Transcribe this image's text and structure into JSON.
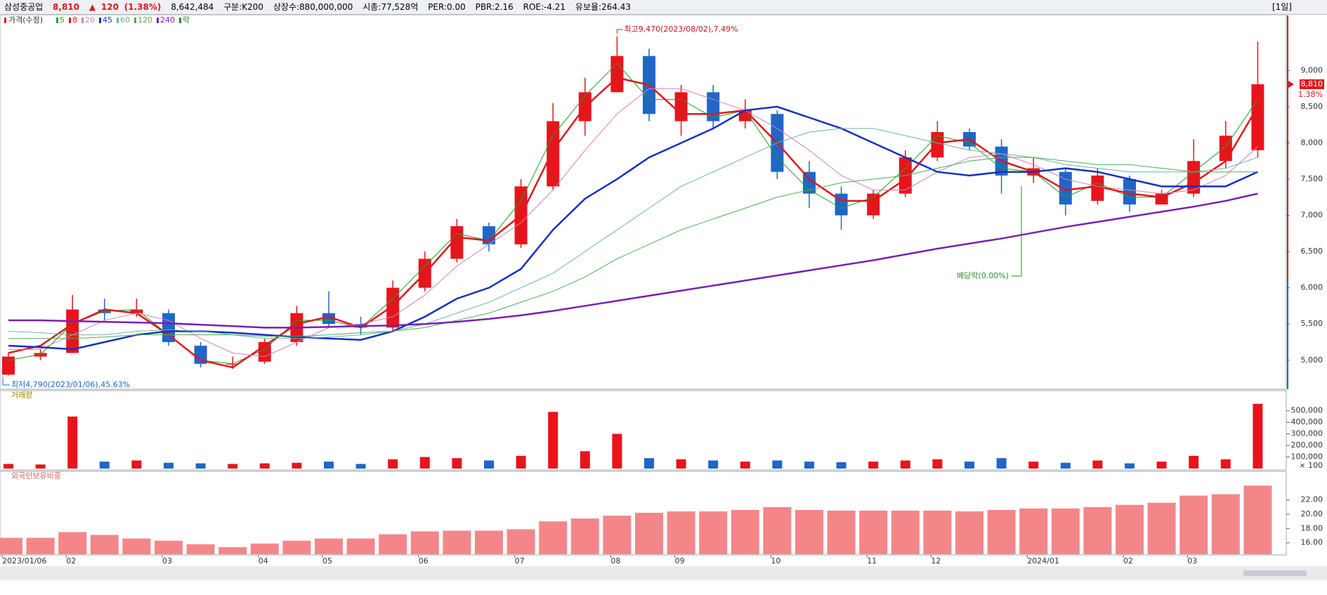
{
  "header": {
    "name": "삼성중공업",
    "price": "8,810",
    "arrow": "▲",
    "change": "120",
    "change_rate": "(1.38%)",
    "volume": "8,642,484",
    "group": "구분:K200",
    "shares": "상장수:880,000,000",
    "cap": "시총:77,528억",
    "per": "PER:0.00",
    "pbr": "PBR:2.16",
    "roe": "ROE:-4.21",
    "reserve": "유보율:264.43",
    "period": "[1일]"
  },
  "chart_data": [
    {
      "type": "candlestick",
      "price_label": "가격(수정)",
      "ex_div_label": "락",
      "categories": [
        "2023/01/06",
        null,
        "02",
        null,
        null,
        "03",
        null,
        null,
        "04",
        null,
        "05",
        null,
        null,
        "06",
        null,
        null,
        "07",
        null,
        null,
        "08",
        null,
        "09",
        null,
        null,
        "10",
        null,
        null,
        "11",
        null,
        "12",
        null,
        null,
        "2024/01",
        null,
        null,
        "02",
        null,
        "03",
        null,
        null
      ],
      "open": [
        4800,
        5050,
        5100,
        5700,
        5650,
        5650,
        5200,
        4950,
        4980,
        5250,
        5650,
        5500,
        5450,
        6000,
        6400,
        6850,
        6600,
        7400,
        8300,
        8700,
        9200,
        8300,
        8700,
        8300,
        8400,
        7600,
        7300,
        7000,
        7300,
        7800,
        8150,
        7950,
        7550,
        7600,
        7200,
        7500,
        7150,
        7300,
        7750,
        7900
      ],
      "high": [
        5100,
        5150,
        5900,
        5850,
        5850,
        5700,
        5250,
        5050,
        5300,
        5750,
        5950,
        5600,
        6100,
        6500,
        6950,
        6900,
        7500,
        8550,
        8900,
        9470,
        9300,
        8800,
        8800,
        8600,
        8450,
        7750,
        7400,
        7350,
        7900,
        8300,
        8200,
        8050,
        7800,
        7650,
        7650,
        7550,
        7350,
        8050,
        8300,
        9400
      ],
      "low": [
        4790,
        5000,
        5100,
        5550,
        5600,
        5200,
        4900,
        4880,
        4950,
        5200,
        5450,
        5350,
        5400,
        5950,
        6350,
        6500,
        6550,
        7350,
        8100,
        8700,
        8300,
        8100,
        8200,
        8200,
        7500,
        7100,
        6800,
        6950,
        7250,
        7750,
        7900,
        7300,
        7450,
        7000,
        7150,
        7050,
        7150,
        7250,
        7650,
        7800
      ],
      "close": [
        5050,
        5100,
        5700,
        5650,
        5700,
        5250,
        4950,
        4950,
        5250,
        5650,
        5500,
        5450,
        6000,
        6400,
        6850,
        6600,
        7400,
        8300,
        8700,
        9200,
        8400,
        8700,
        8300,
        8450,
        7600,
        7300,
        7000,
        7300,
        7800,
        8150,
        7950,
        7550,
        7650,
        7150,
        7550,
        7150,
        7300,
        7750,
        8100,
        8810
      ],
      "up_color": "#e8141c",
      "down_color": "#2066c8",
      "series": [
        {
          "name": "5",
          "color": "#22a022",
          "width": 1,
          "values": [
            5000,
            5080,
            5500,
            5680,
            5700,
            5350,
            5000,
            4950,
            5150,
            5550,
            5550,
            5450,
            5850,
            6300,
            6750,
            6650,
            7200,
            8100,
            8650,
            9100,
            8600,
            8600,
            8350,
            8450,
            7800,
            7350,
            7100,
            7250,
            7650,
            8100,
            8000,
            7650,
            7600,
            7250,
            7450,
            7250,
            7250,
            7600,
            7950,
            8600
          ]
        },
        {
          "name": "8",
          "color": "#e0161c",
          "width": 2.5,
          "values": [
            5100,
            5200,
            5500,
            5700,
            5650,
            5350,
            5000,
            4900,
            5200,
            5500,
            5600,
            5450,
            5750,
            6200,
            6700,
            6650,
            7000,
            7900,
            8500,
            8900,
            8800,
            8400,
            8400,
            8450,
            8000,
            7500,
            7200,
            7200,
            7500,
            8000,
            8050,
            7750,
            7600,
            7350,
            7400,
            7300,
            7250,
            7450,
            7750,
            8500
          ]
        },
        {
          "name": "20",
          "color": "#d77fb4",
          "width": 1,
          "values": [
            5150,
            5150,
            5350,
            5550,
            5650,
            5550,
            5300,
            5100,
            5050,
            5250,
            5450,
            5500,
            5600,
            5900,
            6300,
            6600,
            6900,
            7350,
            7900,
            8400,
            8750,
            8750,
            8600,
            8450,
            8200,
            7900,
            7550,
            7350,
            7350,
            7600,
            7800,
            7850,
            7700,
            7500,
            7400,
            7350,
            7300,
            7350,
            7550,
            7950
          ]
        },
        {
          "name": "45",
          "color": "#1530c0",
          "width": 2.5,
          "values": [
            5200,
            5180,
            5150,
            5250,
            5350,
            5400,
            5400,
            5380,
            5350,
            5320,
            5300,
            5280,
            5400,
            5600,
            5850,
            6000,
            6260,
            6800,
            7230,
            7500,
            7800,
            8000,
            8200,
            8450,
            8500,
            8350,
            8200,
            8000,
            7800,
            7600,
            7550,
            7600,
            7600,
            7650,
            7600,
            7500,
            7400,
            7400,
            7400,
            7600
          ]
        },
        {
          "name": "60",
          "color": "#6fb0b0",
          "width": 1,
          "values": [
            5400,
            5380,
            5350,
            5350,
            5400,
            5420,
            5400,
            5350,
            5300,
            5300,
            5320,
            5350,
            5400,
            5500,
            5650,
            5800,
            6000,
            6200,
            6500,
            6800,
            7100,
            7400,
            7600,
            7800,
            8000,
            8150,
            8200,
            8200,
            8100,
            8000,
            7900,
            7850,
            7800,
            7700,
            7650,
            7600,
            7600,
            7600,
            7650,
            7800
          ]
        },
        {
          "name": "120",
          "color": "#4caf50",
          "width": 1,
          "values": [
            5300,
            5300,
            5300,
            5320,
            5350,
            5350,
            5350,
            5350,
            5330,
            5330,
            5350,
            5380,
            5400,
            5450,
            5550,
            5650,
            5800,
            5950,
            6150,
            6400,
            6600,
            6800,
            6950,
            7100,
            7250,
            7350,
            7450,
            7500,
            7550,
            7650,
            7750,
            7800,
            7800,
            7750,
            7700,
            7700,
            7650,
            7600,
            7600,
            7600
          ]
        },
        {
          "name": "240",
          "color": "#7a1fb5",
          "width": 2.5,
          "values": [
            5550,
            5550,
            5540,
            5530,
            5520,
            5510,
            5490,
            5470,
            5450,
            5450,
            5460,
            5470,
            5480,
            5500,
            5530,
            5570,
            5620,
            5680,
            5750,
            5820,
            5890,
            5960,
            6030,
            6100,
            6170,
            6240,
            6310,
            6380,
            6460,
            6540,
            6610,
            6680,
            6760,
            6840,
            6910,
            6980,
            7050,
            7120,
            7200,
            7300
          ]
        }
      ],
      "ylim": [
        4600,
        9760
      ],
      "yticks": [
        {
          "value": 5000,
          "label": "5,000"
        },
        {
          "value": 5500,
          "label": "5,500"
        },
        {
          "value": 6000,
          "label": "6,000"
        },
        {
          "value": 6500,
          "label": "6,500"
        },
        {
          "value": 7000,
          "label": "7,000"
        },
        {
          "value": 7500,
          "label": "7,500"
        },
        {
          "value": 8000,
          "label": "8,000"
        },
        {
          "value": 8500,
          "label": "8,500"
        },
        {
          "value": 9000,
          "label": "9,000"
        }
      ],
      "high_annotation": "최고9,470(2023/08/02),7.49%",
      "low_annotation": "최저4,790(2023/01/06),45.63%",
      "dividend_annotation": "배당락(0.00%)",
      "last_price_label": "8,810",
      "last_change_label": "1.38%"
    },
    {
      "type": "bar",
      "title": "거래량",
      "unit_label": "× 100",
      "values": [
        40000,
        35000,
        450000,
        60000,
        70000,
        50000,
        45000,
        40000,
        45000,
        50000,
        60000,
        40000,
        80000,
        100000,
        90000,
        70000,
        110000,
        490000,
        150000,
        300000,
        90000,
        80000,
        70000,
        60000,
        70000,
        60000,
        55000,
        60000,
        70000,
        80000,
        60000,
        90000,
        60000,
        50000,
        70000,
        45000,
        60000,
        110000,
        80000,
        560000
      ],
      "ylim": [
        0,
        650000
      ],
      "yticks": [
        {
          "value": 100000,
          "label": "100,000"
        },
        {
          "value": 200000,
          "label": "200,000"
        },
        {
          "value": 300000,
          "label": "300,000"
        },
        {
          "value": 400000,
          "label": "400,000"
        },
        {
          "value": 500000,
          "label": "500,000"
        }
      ]
    },
    {
      "type": "bar",
      "title": "외국인보유비중",
      "color": "#f4868a",
      "values": [
        16.7,
        16.7,
        17.5,
        17.1,
        16.6,
        16.3,
        15.8,
        15.4,
        15.9,
        16.3,
        16.6,
        16.6,
        17.2,
        17.6,
        17.7,
        17.7,
        17.9,
        19.0,
        19.4,
        19.8,
        20.2,
        20.4,
        20.4,
        20.6,
        21.0,
        20.6,
        20.5,
        20.5,
        20.5,
        20.5,
        20.4,
        20.6,
        20.8,
        20.8,
        21.0,
        21.3,
        21.6,
        22.6,
        22.8,
        24.0
      ],
      "ylim": [
        14.4,
        25.6
      ],
      "yticks": [
        {
          "value": 16,
          "label": "16.00"
        },
        {
          "value": 18,
          "label": "18.00"
        },
        {
          "value": 20,
          "label": "20.00"
        },
        {
          "value": 22,
          "label": "22.00"
        }
      ]
    }
  ]
}
